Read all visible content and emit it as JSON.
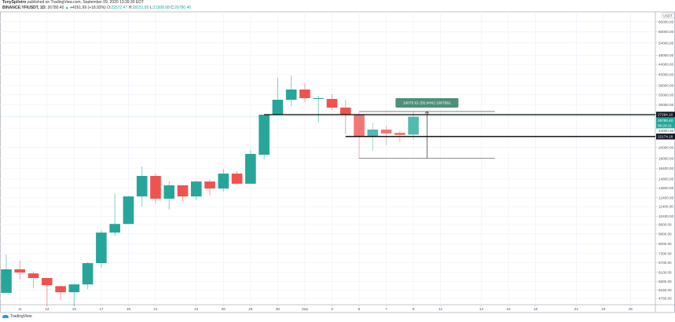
{
  "header": {
    "author": "TonySpilotro",
    "published": "published on TradingView.com, September 09, 2020 13:39:30 EDT",
    "symbol": "BINANCE:YFIUSDT, 1D:",
    "last": "26780.40",
    "change_arrow": "▲",
    "change": "+4261.99 (+18.93%)",
    "o_label": "O:",
    "o": "22572.47",
    "h_label": "H:",
    "h": "28151.85",
    "l_label": "L:",
    "l": "21508.08",
    "c_label": "C:",
    "c": "26780.40"
  },
  "footer": {
    "brand": "TradingView",
    "icon": "tradingview-cloud-icon"
  },
  "colors": {
    "up": "#26a69a",
    "down": "#ef5350",
    "grid": "#f0f3fa",
    "level": "#000000",
    "measure": "#4e8f7a"
  },
  "chart_data": {
    "type": "candlestick",
    "y_scale": "log",
    "currency": "USDT",
    "grid": true,
    "candles": [
      [
        5020,
        7230,
        5020,
        6280
      ],
      [
        6280,
        6810,
        5700,
        6090
      ],
      [
        6040,
        6150,
        5240,
        5780
      ],
      [
        5780,
        5810,
        4420,
        5400
      ],
      [
        5350,
        5400,
        4690,
        5050
      ],
      [
        5050,
        5490,
        4420,
        5440
      ],
      [
        5440,
        6720,
        5200,
        6660
      ],
      [
        6660,
        9120,
        6350,
        8900
      ],
      [
        8900,
        12830,
        8640,
        9660
      ],
      [
        9660,
        12640,
        9660,
        12550
      ],
      [
        12550,
        16680,
        11400,
        15250
      ],
      [
        15250,
        15590,
        11740,
        12280
      ],
      [
        12280,
        14460,
        11080,
        13950
      ],
      [
        13950,
        13950,
        12010,
        12550
      ],
      [
        12550,
        14570,
        12090,
        14460
      ],
      [
        14460,
        14790,
        12640,
        13530
      ],
      [
        13530,
        16320,
        13130,
        15590
      ],
      [
        15590,
        15950,
        13950,
        14160
      ],
      [
        14160,
        19510,
        14160,
        18800
      ],
      [
        18650,
        27294,
        17830,
        27294
      ],
      [
        27294,
        38760,
        27294,
        31450
      ],
      [
        31450,
        39630,
        29630,
        34660
      ],
      [
        34660,
        36790,
        30760,
        31930
      ],
      [
        31930,
        32650,
        25330,
        31930
      ],
      [
        31690,
        33140,
        28540,
        29190
      ],
      [
        29190,
        31450,
        22650,
        27294
      ],
      [
        27294,
        27910,
        17970,
        22140
      ],
      [
        22140,
        25330,
        19350,
        23690
      ],
      [
        23690,
        24590,
        20410,
        22820
      ],
      [
        22980,
        23500,
        21020,
        22490
      ],
      [
        22572.47,
        28151.85,
        21508.08,
        26780.4
      ]
    ],
    "candle_fields": [
      "open",
      "high",
      "low",
      "close"
    ],
    "x_ticks": [
      {
        "label": "11",
        "index": 1
      },
      {
        "label": "13",
        "index": 3
      },
      {
        "label": "15",
        "index": 5
      },
      {
        "label": "17",
        "index": 7
      },
      {
        "label": "19",
        "index": 9
      },
      {
        "label": "21",
        "index": 11
      },
      {
        "label": "24",
        "index": 14
      },
      {
        "label": "26",
        "index": 16
      },
      {
        "label": "28",
        "index": 18
      },
      {
        "label": "30",
        "index": 20
      },
      {
        "label": "Sep",
        "index": 22
      },
      {
        "label": "3",
        "index": 24
      },
      {
        "label": "5",
        "index": 26
      },
      {
        "label": "7",
        "index": 28
      },
      {
        "label": "9",
        "index": 30
      },
      {
        "label": "11",
        "index": 32
      },
      {
        "label": "14",
        "index": 35
      },
      {
        "label": "16",
        "index": 37
      },
      {
        "label": "18",
        "index": 39
      },
      {
        "label": "21",
        "index": 42
      },
      {
        "label": "23",
        "index": 44
      },
      {
        "label": "25",
        "index": 46
      }
    ],
    "y_ticks": [
      "66000.00",
      "60000.00",
      "54000.00",
      "48000.00",
      "44000.00",
      "40000.00",
      "36000.00",
      "33000.00",
      "30000.00",
      "24000.00",
      "20000.00",
      "18000.00",
      "16400.00",
      "14800.00",
      "13600.00",
      "12400.00",
      "11400.00",
      "10400.00",
      "9600.00",
      "8800.00",
      "8000.00",
      "7300.00",
      "6700.00",
      "6100.00",
      "5600.00",
      "5160.00",
      "4760.00"
    ],
    "levels": [
      {
        "price": 27294.1,
        "label": "27294.10",
        "from_index": 19
      },
      {
        "price": 22174.18,
        "label": "22174.18",
        "from_index": 25
      }
    ],
    "last_price": {
      "price": 26780.4,
      "label": "26780.40",
      "countdown": "06:20:11"
    },
    "measure": {
      "from_index": 26,
      "to_index": 36,
      "arrow_index": 31,
      "low": 18043.79,
      "high": 28119.4,
      "label": "10075.61 (55.84%) 1007561"
    }
  }
}
